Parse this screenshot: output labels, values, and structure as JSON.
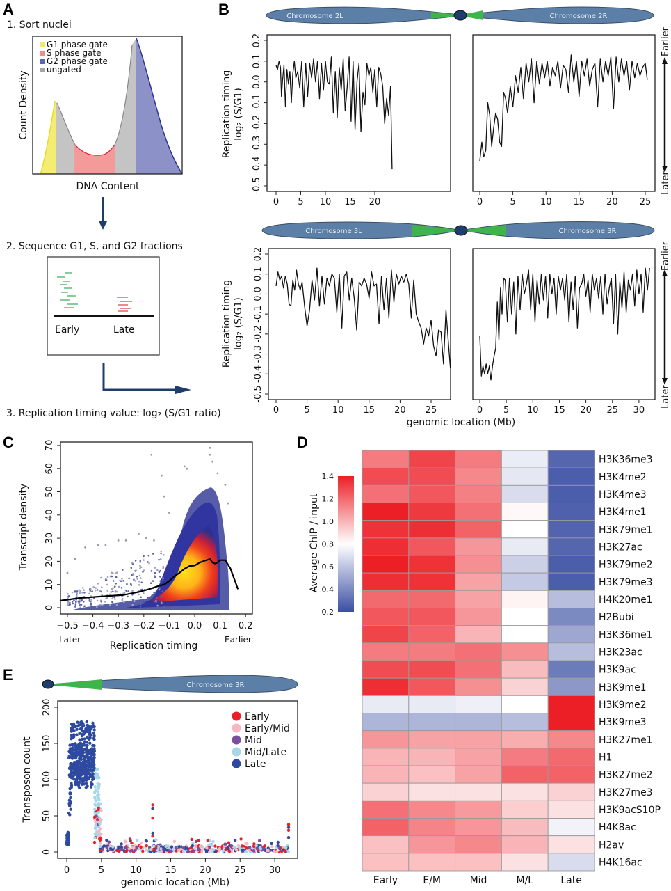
{
  "panels": {
    "A": {
      "label": "A",
      "step1": "1. Sort nuclei",
      "step2": "2. Sequence G1, S, and G2 fractions",
      "step3": "3. Replication timing value: log₂ (S/G1 ratio)",
      "histogram": {
        "xlabel": "DNA Content",
        "ylabel": "Count Density",
        "legend": [
          {
            "label": "G1 phase gate",
            "color": "#f2e96a"
          },
          {
            "label": "S phase gate",
            "color": "#f28c8c"
          },
          {
            "label": "G2 phase gate",
            "color": "#5c65b5"
          },
          {
            "label": "ungated",
            "color": "#a6a6a6"
          }
        ]
      },
      "sequencing": {
        "early_label": "Early",
        "late_label": "Late",
        "early_color": "#3aaa5c",
        "late_color": "#e03c3c"
      }
    },
    "B": {
      "label": "B",
      "ylabel_line1": "Replication timing",
      "ylabel_line2": "log₂ (S/G1)",
      "xlabel": "genomic location (Mb)",
      "earlier_label": "Earlier",
      "later_label": "Later",
      "chromosomes": [
        {
          "left": "Chromosome 2L",
          "right": "Chromosome 2R"
        },
        {
          "left": "Chromosome 3L",
          "right": "Chromosome 3R"
        }
      ]
    },
    "C": {
      "label": "C",
      "later_label": "Later",
      "earlier_label": "Earlier"
    },
    "D": {
      "label": "D",
      "colorbar_label": "Average ChIP / input"
    },
    "E": {
      "label": "E",
      "chromosome_label": "Chromosome 3R"
    }
  },
  "colors": {
    "chromosome": "#5b7fa6",
    "heterochromatin": "#3db54a",
    "centromere": "#1e3f6e",
    "arrow": "#1f3d6b",
    "line": "#111111"
  },
  "chart_data": [
    {
      "id": "B-2L",
      "type": "line",
      "title": "Chromosome 2L",
      "xlabel": "",
      "ylabel": "Replication timing log2 (S/G1)",
      "xlim": [
        -0.8,
        25.5
      ],
      "ylim": [
        -0.52,
        0.24
      ],
      "xticks": [
        0,
        5,
        10,
        15,
        20
      ],
      "yticks": [
        0.2,
        0.1,
        0.0,
        -0.1,
        -0.2,
        -0.3,
        -0.4,
        -0.5
      ],
      "x": [
        0,
        0.3,
        0.6,
        0.9,
        1.1,
        1.3,
        1.6,
        1.9,
        2.2,
        2.5,
        2.8,
        3.1,
        3.4,
        3.7,
        4.0,
        4.4,
        4.8,
        5.2,
        5.6,
        6.0,
        6.4,
        6.8,
        7.2,
        7.6,
        8.0,
        8.4,
        8.8,
        9.2,
        9.6,
        10.0,
        10.4,
        10.8,
        11.2,
        11.6,
        12.0,
        12.4,
        12.8,
        13.2,
        13.6,
        14.0,
        14.4,
        14.8,
        15.2,
        15.6,
        16.0,
        16.4,
        16.8,
        17.2,
        17.6,
        18.0,
        18.4,
        18.8,
        19.2,
        19.6,
        20.0,
        20.4,
        20.8,
        21.2,
        21.6,
        22.0,
        22.4,
        22.8,
        23.2,
        23.5
      ],
      "y": [
        0.08,
        0.06,
        0.1,
        0.07,
        -0.07,
        0.0,
        0.08,
        -0.12,
        0.06,
        -0.01,
        0.05,
        -0.1,
        0.04,
        0.1,
        0.02,
        0.05,
        -0.03,
        0.1,
        -0.12,
        0.09,
        -0.07,
        0.09,
        0.02,
        0.11,
        0.0,
        0.1,
        -0.08,
        0.09,
        -0.04,
        0.1,
        0.0,
        -0.01,
        0.12,
        -0.15,
        0.05,
        -0.17,
        0.07,
        -0.04,
        0.11,
        -0.14,
        -0.03,
        0.12,
        -0.19,
        0.1,
        -0.23,
        0.0,
        0.09,
        -0.24,
        -0.05,
        -0.11,
        0.09,
        0.03,
        0.07,
        -0.05,
        0.06,
        -0.12,
        0.07,
        0.04,
        -0.02,
        -0.2,
        -0.08,
        -0.16,
        -0.02,
        -0.42
      ]
    },
    {
      "id": "B-2R",
      "type": "line",
      "title": "Chromosome 2R",
      "xlabel": "",
      "ylabel": "",
      "xlim": [
        -0.8,
        26.0
      ],
      "ylim": [
        -0.52,
        0.24
      ],
      "xticks": [
        0,
        5,
        10,
        15,
        20,
        25
      ],
      "x": [
        0,
        0.3,
        0.6,
        0.9,
        1.2,
        1.5,
        1.8,
        2.1,
        2.4,
        2.7,
        3.0,
        3.3,
        3.6,
        3.9,
        4.2,
        4.6,
        5.0,
        5.4,
        5.8,
        6.2,
        6.6,
        7.0,
        7.4,
        7.8,
        8.2,
        8.6,
        9.0,
        9.4,
        9.8,
        10.2,
        10.6,
        11.0,
        11.4,
        11.8,
        12.2,
        12.6,
        13.0,
        13.4,
        13.8,
        14.2,
        14.6,
        15.0,
        15.4,
        15.8,
        16.2,
        16.6,
        17.0,
        17.4,
        17.8,
        18.2,
        18.6,
        19.0,
        19.4,
        19.8,
        20.2,
        20.6,
        21.0,
        21.4,
        21.8,
        22.2,
        22.6,
        23.0,
        23.4,
        23.8,
        24.2,
        24.6,
        25.0,
        25.3
      ],
      "y": [
        -0.38,
        -0.29,
        -0.36,
        -0.33,
        -0.1,
        -0.16,
        -0.31,
        -0.22,
        -0.15,
        -0.18,
        -0.29,
        -0.31,
        -0.05,
        -0.08,
        -0.15,
        -0.02,
        -0.12,
        0.03,
        -0.05,
        0.07,
        -0.08,
        0.09,
        0.0,
        0.11,
        -0.1,
        0.1,
        -0.01,
        0.09,
        0.02,
        0.1,
        -0.02,
        0.07,
        0.03,
        0.1,
        -0.03,
        0.08,
        0.06,
        -0.05,
        0.13,
        0.0,
        0.1,
        -0.07,
        0.1,
        0.03,
        0.11,
        -0.02,
        0.06,
        0.09,
        -0.12,
        0.11,
        0.0,
        0.1,
        0.03,
        0.12,
        -0.13,
        0.12,
        0.0,
        0.11,
        0.03,
        0.1,
        -0.04,
        0.1,
        0.02,
        0.09,
        0.03,
        0.07,
        0.09,
        0.01
      ]
    },
    {
      "id": "B-3L",
      "type": "line",
      "title": "Chromosome 3L",
      "xlabel": "",
      "ylabel": "Replication timing log2 (S/G1)",
      "xlim": [
        -0.8,
        29.5
      ],
      "ylim": [
        -0.52,
        0.24
      ],
      "xticks": [
        0,
        5,
        10,
        15,
        20,
        25
      ],
      "x": [
        0,
        0.3,
        0.6,
        0.9,
        1.2,
        1.5,
        1.8,
        2.1,
        2.4,
        2.7,
        3.0,
        3.3,
        3.6,
        3.9,
        4.2,
        4.6,
        5.0,
        5.4,
        5.8,
        6.2,
        6.6,
        7.0,
        7.4,
        7.8,
        8.2,
        8.6,
        9.0,
        9.4,
        9.8,
        10.2,
        10.6,
        11.0,
        11.4,
        11.8,
        12.2,
        12.6,
        13.0,
        13.4,
        13.8,
        14.2,
        14.6,
        15.0,
        15.4,
        15.8,
        16.2,
        16.6,
        17.0,
        17.4,
        17.8,
        18.2,
        18.6,
        19.0,
        19.4,
        19.8,
        20.2,
        20.6,
        21.0,
        21.4,
        21.8,
        22.2,
        22.6,
        23.0,
        23.4,
        23.8,
        24.2,
        24.6,
        25.0,
        25.4,
        25.8,
        26.2,
        26.6,
        27.0,
        27.4,
        27.8,
        28.1
      ],
      "y": [
        0.04,
        0.11,
        0.07,
        0.09,
        0.03,
        0.09,
        0.05,
        -0.05,
        -0.06,
        0.07,
        0.02,
        0.12,
        0.05,
        0.02,
        0.06,
        -0.06,
        -0.16,
        -0.08,
        0.07,
        -0.03,
        0.13,
        -0.06,
        0.09,
        -0.05,
        0.08,
        0.04,
        0.1,
        0.08,
        -0.09,
        0.1,
        -0.17,
        0.09,
        0.11,
        -0.03,
        0.08,
        -0.02,
        -0.18,
        0.06,
        0.04,
        0.08,
        0.05,
        -0.02,
        0.11,
        0.04,
        0.05,
        -0.15,
        0.09,
        -0.08,
        0.08,
        -0.12,
        0.12,
        -0.04,
        0.1,
        0.05,
        0.09,
        0.06,
        0.1,
        0.05,
        -0.12,
        0.07,
        -0.1,
        -0.14,
        -0.17,
        -0.25,
        -0.17,
        -0.21,
        -0.13,
        -0.26,
        -0.31,
        -0.18,
        -0.19,
        -0.35,
        -0.08,
        -0.25,
        -0.37
      ]
    },
    {
      "id": "B-3R",
      "type": "line",
      "title": "Chromosome 3R",
      "xlabel": "genomic location (Mb)",
      "ylabel": "",
      "xlim": [
        -0.8,
        33.0
      ],
      "ylim": [
        -0.52,
        0.24
      ],
      "xticks": [
        0,
        5,
        10,
        15,
        20,
        25,
        30
      ],
      "x": [
        0,
        0.3,
        0.6,
        0.9,
        1.2,
        1.5,
        1.8,
        2.1,
        2.4,
        2.7,
        3.0,
        3.3,
        3.6,
        3.9,
        4.2,
        4.5,
        4.8,
        5.2,
        5.6,
        6.0,
        6.4,
        6.8,
        7.2,
        7.6,
        8.0,
        8.4,
        8.8,
        9.2,
        9.6,
        10.0,
        10.4,
        10.8,
        11.2,
        11.6,
        12.0,
        12.4,
        12.8,
        13.2,
        13.6,
        14.0,
        14.4,
        14.8,
        15.2,
        15.6,
        16.0,
        16.4,
        16.8,
        17.2,
        17.6,
        18.0,
        18.4,
        18.8,
        19.2,
        19.6,
        20.0,
        20.4,
        20.8,
        21.2,
        21.6,
        22.0,
        22.4,
        22.8,
        23.2,
        23.6,
        24.0,
        24.4,
        24.8,
        25.2,
        25.6,
        26.0,
        26.4,
        26.8,
        27.2,
        27.6,
        28.0,
        28.4,
        28.8,
        29.2,
        29.6,
        30.0,
        30.4,
        30.8,
        31.2,
        31.6,
        32.0
      ],
      "y": [
        -0.21,
        -0.41,
        -0.36,
        -0.4,
        -0.35,
        -0.4,
        -0.36,
        -0.43,
        -0.36,
        -0.31,
        -0.27,
        -0.04,
        -0.23,
        0.03,
        -0.1,
        0.08,
        0.07,
        -0.14,
        0.08,
        -0.1,
        0.06,
        -0.2,
        0.09,
        -0.08,
        0.1,
        0.0,
        0.05,
        0.12,
        -0.08,
        0.1,
        -0.14,
        0.07,
        -0.05,
        0.1,
        -0.03,
        0.09,
        -0.12,
        0.1,
        0.0,
        0.08,
        -0.1,
        0.09,
        0.02,
        0.08,
        -0.03,
        0.1,
        -0.14,
        0.06,
        -0.08,
        0.09,
        -0.17,
        0.03,
        0.05,
        0.1,
        -0.01,
        0.07,
        -0.09,
        0.1,
        0.02,
        0.08,
        -0.02,
        0.09,
        -0.1,
        0.1,
        -0.05,
        0.03,
        0.08,
        -0.15,
        0.1,
        -0.2,
        0.06,
        -0.07,
        0.11,
        -0.09,
        0.07,
        0.02,
        0.1,
        -0.06,
        0.12,
        0.0,
        0.1,
        -0.09,
        0.13,
        0.02,
        0.13
      ]
    },
    {
      "id": "C",
      "type": "scatter",
      "title": "",
      "xlabel": "Replication timing",
      "ylabel": "Transcript density",
      "xlim": [
        -0.53,
        0.23
      ],
      "ylim": [
        -3,
        71
      ],
      "xticks": [
        -0.5,
        -0.4,
        -0.3,
        -0.2,
        -0.1,
        0.0,
        0.1,
        0.2
      ],
      "yticks": [
        0,
        10,
        20,
        30,
        40,
        50,
        60,
        70
      ],
      "density_core": {
        "x_center": 0.05,
        "y_center": 15,
        "note": "density-colored points, blue (low) to yellow (high)"
      },
      "outliers": [
        [
          -0.17,
          66
        ],
        [
          -0.13,
          57
        ],
        [
          -0.04,
          61
        ],
        [
          -0.03,
          60
        ],
        [
          0.06,
          69
        ],
        [
          0.06,
          66
        ],
        [
          0.07,
          63
        ],
        [
          0.09,
          58
        ],
        [
          -0.12,
          48
        ],
        [
          -0.1,
          41
        ],
        [
          -0.43,
          26
        ],
        [
          -0.47,
          21
        ],
        [
          -0.5,
          15
        ],
        [
          -0.38,
          27
        ],
        [
          -0.35,
          27
        ],
        [
          -0.3,
          29
        ],
        [
          -0.27,
          29
        ],
        [
          -0.22,
          32
        ],
        [
          -0.19,
          30
        ],
        [
          -0.16,
          29
        ],
        [
          0.12,
          53
        ],
        [
          0.13,
          45
        ]
      ],
      "trend_line": {
        "x": [
          -0.53,
          -0.45,
          -0.35,
          -0.28,
          -0.22,
          -0.18,
          -0.14,
          -0.12,
          -0.1,
          -0.08,
          -0.06,
          -0.04,
          -0.02,
          0.0,
          0.02,
          0.04,
          0.06,
          0.07,
          0.08,
          0.09,
          0.1,
          0.12,
          0.14,
          0.16,
          0.17
        ],
        "y": [
          3,
          4.2,
          5,
          5.5,
          6.8,
          8,
          9.5,
          10,
          11.5,
          13.5,
          15,
          16.8,
          18,
          18.2,
          19.5,
          20.3,
          21,
          19.5,
          19,
          19.5,
          20.5,
          20.5,
          17,
          11,
          8
        ]
      }
    },
    {
      "id": "D",
      "type": "heatmap",
      "title": "",
      "colorbar": {
        "label": "Average ChIP / input",
        "range": [
          0.2,
          1.4
        ],
        "ticks": [
          1.4,
          1.2,
          1.0,
          0.8,
          0.6,
          0.4,
          0.2
        ],
        "low_color": "#3b4fa3",
        "mid_color": "#ffffff",
        "high_color": "#ec1f26"
      },
      "columns": [
        "Early",
        "E/M",
        "Mid",
        "M/L",
        "Late"
      ],
      "rows": [
        "H3K36me3",
        "H3K4me2",
        "H3K4me3",
        "H3K4me1",
        "H3K79me1",
        "H3K27ac",
        "H3K79me2",
        "H3K79me3",
        "H4K20me1",
        "H2Bubi",
        "H3K36me1",
        "H3K23ac",
        "H3K9ac",
        "H3K9me1",
        "H3K9me2",
        "H3K9me3",
        "H3K27me1",
        "H1",
        "H3K27me2",
        "H3K27me3",
        "H3K9acS10P",
        "H4K8ac",
        "H2av",
        "H4K16ac"
      ],
      "values": [
        [
          1.15,
          1.3,
          1.15,
          0.74,
          0.28
        ],
        [
          1.28,
          1.28,
          1.12,
          0.72,
          0.25
        ],
        [
          1.18,
          1.25,
          1.14,
          0.68,
          0.25
        ],
        [
          1.4,
          1.33,
          1.18,
          0.82,
          0.26
        ],
        [
          1.35,
          1.36,
          1.22,
          0.8,
          0.27
        ],
        [
          1.36,
          1.25,
          1.08,
          0.73,
          0.28
        ],
        [
          1.4,
          1.35,
          1.1,
          0.64,
          0.25
        ],
        [
          1.36,
          1.35,
          1.05,
          0.62,
          0.25
        ],
        [
          1.2,
          1.2,
          1.05,
          0.83,
          0.58
        ],
        [
          1.25,
          1.25,
          1.08,
          0.8,
          0.4
        ],
        [
          1.3,
          1.22,
          1.0,
          0.8,
          0.5
        ],
        [
          1.15,
          1.15,
          1.18,
          1.1,
          0.58
        ],
        [
          1.28,
          1.28,
          1.18,
          0.98,
          0.35
        ],
        [
          1.36,
          1.25,
          1.1,
          0.92,
          0.45
        ],
        [
          0.73,
          0.73,
          0.75,
          0.8,
          1.4
        ],
        [
          0.55,
          0.55,
          0.55,
          0.58,
          1.4
        ],
        [
          1.08,
          1.05,
          1.05,
          1.02,
          1.12
        ],
        [
          1.0,
          1.0,
          1.05,
          1.15,
          1.2
        ],
        [
          1.0,
          0.97,
          1.05,
          1.22,
          1.22
        ],
        [
          0.92,
          0.88,
          0.88,
          0.88,
          0.92
        ],
        [
          1.18,
          1.12,
          1.07,
          0.93,
          0.88
        ],
        [
          1.22,
          1.13,
          1.08,
          0.98,
          0.76
        ],
        [
          0.97,
          1.08,
          1.12,
          1.0,
          0.88
        ],
        [
          0.97,
          0.97,
          0.97,
          0.88,
          0.68
        ]
      ]
    },
    {
      "id": "E",
      "type": "scatter",
      "title": "",
      "xlabel": "genomic location (Mb)",
      "ylabel": "Transposon count",
      "xlim": [
        -1.3,
        33.3
      ],
      "ylim": [
        -8,
        209
      ],
      "xticks": [
        0,
        5,
        10,
        15,
        20,
        25,
        30
      ],
      "yticks": [
        0,
        50,
        100,
        150,
        200
      ],
      "legend": [
        {
          "label": "Early",
          "color": "#e8202a"
        },
        {
          "label": "Early/Mid",
          "color": "#f7b8c4"
        },
        {
          "label": "Mid",
          "color": "#7b4fa0"
        },
        {
          "label": "Mid/Late",
          "color": "#a8d8e8"
        },
        {
          "label": "Late",
          "color": "#2e4aa0"
        }
      ],
      "legend_position": "top-right",
      "highlights": [
        {
          "x_range": [
            0.0,
            0.3
          ],
          "y_range": [
            10,
            28
          ],
          "series": "Late"
        },
        {
          "x_range": [
            0.3,
            0.6
          ],
          "y_range": [
            50,
            150
          ],
          "series": "Late"
        },
        {
          "x_range": [
            0.6,
            4.0
          ],
          "y_range": [
            88,
            180
          ],
          "series": "Late"
        },
        {
          "x_range": [
            4.0,
            4.7
          ],
          "y_range": [
            20,
            115
          ],
          "series": "Mid/Late"
        },
        {
          "x": 12.4,
          "y_values": [
            65,
            60,
            47,
            26,
            22
          ],
          "series": "Early"
        },
        {
          "x": 32.0,
          "y_values": [
            38,
            34,
            30,
            20
          ],
          "series": "Early"
        }
      ]
    }
  ]
}
